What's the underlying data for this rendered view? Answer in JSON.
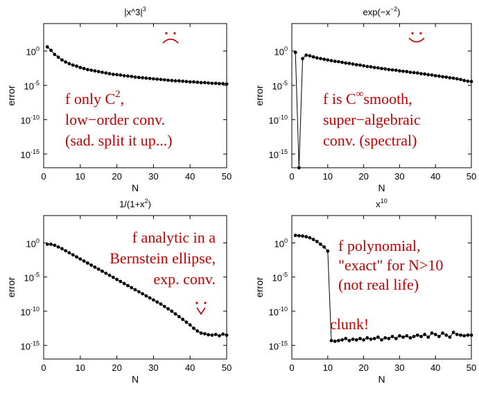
{
  "chart_data": [
    {
      "type": "line",
      "title": "|x^3|",
      "title_sup": "3",
      "xlabel": "N",
      "ylabel": "error",
      "xlim": [
        0,
        50
      ],
      "ylim_exp": [
        -17,
        4
      ],
      "yscale": "log",
      "xticks": [
        "0",
        "10",
        "20",
        "30",
        "40",
        "50"
      ],
      "yticks": [
        {
          "base": "10",
          "exp": "0",
          "v": 0
        },
        {
          "base": "10",
          "exp": "-5",
          "v": -5
        },
        {
          "base": "10",
          "exp": "-10",
          "v": -10
        },
        {
          "base": "10",
          "exp": "-15",
          "v": -15
        }
      ],
      "x": [
        1,
        2,
        3,
        4,
        5,
        6,
        7,
        8,
        9,
        10,
        11,
        12,
        13,
        14,
        15,
        16,
        17,
        18,
        19,
        20,
        21,
        22,
        23,
        24,
        25,
        26,
        27,
        28,
        29,
        30,
        31,
        32,
        33,
        34,
        35,
        36,
        37,
        38,
        39,
        40,
        41,
        42,
        43,
        44,
        45,
        46,
        47,
        48,
        49,
        50
      ],
      "log10_y": [
        0.6,
        0.1,
        -0.5,
        -0.9,
        -1.3,
        -1.6,
        -1.85,
        -2.05,
        -2.2,
        -2.4,
        -2.55,
        -2.7,
        -2.8,
        -2.9,
        -3.0,
        -3.1,
        -3.2,
        -3.3,
        -3.4,
        -3.45,
        -3.5,
        -3.6,
        -3.65,
        -3.7,
        -3.8,
        -3.85,
        -3.9,
        -3.95,
        -4.0,
        -4.05,
        -4.1,
        -4.15,
        -4.2,
        -4.25,
        -4.3,
        -4.35,
        -4.35,
        -4.4,
        -4.45,
        -4.5,
        -4.5,
        -4.55,
        -4.6,
        -4.6,
        -4.65,
        -4.7,
        -4.7,
        -4.75,
        -4.75,
        -4.8
      ],
      "annotation": [
        "f only C",
        "low−order conv.",
        "(sad. split it up...)"
      ],
      "annotation_sup": "2",
      "annotation_sup_tail": ",",
      "face": "frown"
    },
    {
      "type": "line",
      "title": "exp(−x",
      "title_sup": "−2",
      "title_tail": ")",
      "xlabel": "N",
      "ylabel": "error",
      "xlim": [
        0,
        50
      ],
      "ylim_exp": [
        -17,
        4
      ],
      "yscale": "log",
      "xticks": [
        "0",
        "10",
        "20",
        "30",
        "40",
        "50"
      ],
      "yticks": [
        {
          "base": "10",
          "exp": "0",
          "v": 0
        },
        {
          "base": "10",
          "exp": "-5",
          "v": -5
        },
        {
          "base": "10",
          "exp": "-10",
          "v": -10
        },
        {
          "base": "10",
          "exp": "-15",
          "v": -15
        }
      ],
      "x": [
        1,
        2,
        3,
        4,
        5,
        6,
        7,
        8,
        9,
        10,
        11,
        12,
        13,
        14,
        15,
        16,
        17,
        18,
        19,
        20,
        21,
        22,
        23,
        24,
        25,
        26,
        27,
        28,
        29,
        30,
        31,
        32,
        33,
        34,
        35,
        36,
        37,
        38,
        39,
        40,
        41,
        42,
        43,
        44,
        45,
        46,
        47,
        48,
        49,
        50
      ],
      "log10_y": [
        -0.2,
        -17,
        -1.1,
        -0.6,
        -0.7,
        -0.85,
        -1.0,
        -1.1,
        -1.2,
        -1.3,
        -1.4,
        -1.5,
        -1.55,
        -1.65,
        -1.75,
        -1.8,
        -1.9,
        -2.0,
        -2.05,
        -2.15,
        -2.25,
        -2.3,
        -2.4,
        -2.45,
        -2.55,
        -2.6,
        -2.7,
        -2.75,
        -2.8,
        -2.9,
        -2.95,
        -3.0,
        -3.1,
        -3.15,
        -3.2,
        -3.3,
        -3.35,
        -3.45,
        -3.5,
        -3.6,
        -3.65,
        -3.75,
        -3.8,
        -3.9,
        -3.95,
        -4.05,
        -4.15,
        -4.3,
        -4.4,
        -4.45
      ],
      "annotation": [
        "f is C",
        "super−algebraic",
        "conv. (spectral)"
      ],
      "annotation_sup": "∞",
      "annotation_sup_tail": "smooth,",
      "face": "smile"
    },
    {
      "type": "line",
      "title": "1/(1+x",
      "title_sup": "2",
      "title_tail": ")",
      "xlabel": "N",
      "ylabel": "error",
      "xlim": [
        0,
        50
      ],
      "ylim_exp": [
        -17,
        4
      ],
      "yscale": "log",
      "xticks": [
        "0",
        "10",
        "20",
        "30",
        "40",
        "50"
      ],
      "yticks": [
        {
          "base": "10",
          "exp": "0",
          "v": 0
        },
        {
          "base": "10",
          "exp": "-5",
          "v": -5
        },
        {
          "base": "10",
          "exp": "-10",
          "v": -10
        },
        {
          "base": "10",
          "exp": "-15",
          "v": -15
        }
      ],
      "x": [
        1,
        2,
        3,
        4,
        5,
        6,
        7,
        8,
        9,
        10,
        11,
        12,
        13,
        14,
        15,
        16,
        17,
        18,
        19,
        20,
        21,
        22,
        23,
        24,
        25,
        26,
        27,
        28,
        29,
        30,
        31,
        32,
        33,
        34,
        35,
        36,
        37,
        38,
        39,
        40,
        41,
        42,
        43,
        44,
        45,
        46,
        47,
        48,
        49,
        50
      ],
      "log10_y": [
        -0.2,
        -0.2,
        -0.35,
        -0.6,
        -0.85,
        -1.15,
        -1.45,
        -1.75,
        -2.05,
        -2.35,
        -2.65,
        -2.95,
        -3.25,
        -3.55,
        -3.85,
        -4.15,
        -4.45,
        -4.75,
        -5.05,
        -5.35,
        -5.65,
        -5.95,
        -6.25,
        -6.55,
        -6.85,
        -7.15,
        -7.45,
        -7.75,
        -8.05,
        -8.35,
        -8.65,
        -8.95,
        -9.3,
        -9.65,
        -10.0,
        -10.4,
        -10.8,
        -11.2,
        -11.6,
        -12.0,
        -12.5,
        -12.9,
        -13.2,
        -13.3,
        -13.45,
        -13.5,
        -13.4,
        -13.6,
        -13.35,
        -13.5
      ],
      "annotation": [
        "f analytic in a",
        "Bernstein ellipse,",
        "exp. conv."
      ],
      "face": "neutral"
    },
    {
      "type": "line",
      "title": "x",
      "title_sup": "10",
      "xlabel": "N",
      "ylabel": "error",
      "xlim": [
        0,
        50
      ],
      "ylim_exp": [
        -17,
        4
      ],
      "yscale": "log",
      "xticks": [
        "0",
        "10",
        "20",
        "30",
        "40",
        "50"
      ],
      "yticks": [
        {
          "base": "10",
          "exp": "0",
          "v": 0
        },
        {
          "base": "10",
          "exp": "-5",
          "v": -5
        },
        {
          "base": "10",
          "exp": "-10",
          "v": -10
        },
        {
          "base": "10",
          "exp": "-15",
          "v": -15
        }
      ],
      "x": [
        1,
        2,
        3,
        4,
        5,
        6,
        7,
        8,
        9,
        10,
        11,
        12,
        13,
        14,
        15,
        16,
        17,
        18,
        19,
        20,
        21,
        22,
        23,
        24,
        25,
        26,
        27,
        28,
        29,
        30,
        31,
        32,
        33,
        34,
        35,
        36,
        37,
        38,
        39,
        40,
        41,
        42,
        43,
        44,
        45,
        46,
        47,
        48,
        49,
        50
      ],
      "log10_y": [
        1.1,
        1.05,
        1.0,
        0.9,
        0.75,
        0.5,
        0.2,
        -0.2,
        -0.6,
        -1.2,
        -14.3,
        -14.4,
        -14.3,
        -14.2,
        -14.0,
        -14.3,
        -14.1,
        -14.2,
        -14.0,
        -14.2,
        -13.9,
        -14.1,
        -14.0,
        -13.8,
        -14.2,
        -13.9,
        -14.0,
        -13.7,
        -14.0,
        -13.6,
        -13.8,
        -13.6,
        -13.9,
        -13.7,
        -13.5,
        -13.7,
        -13.4,
        -13.8,
        -13.2,
        -13.4,
        -13.7,
        -13.2,
        -13.5,
        -13.8,
        -13.1,
        -13.4,
        -13.5,
        -13.6,
        -13.5,
        -13.5
      ],
      "annotation": [
        "f polynomial,",
        "\"exact\" for N>10",
        "(not real life)"
      ],
      "annotation2": "clunk!"
    }
  ]
}
